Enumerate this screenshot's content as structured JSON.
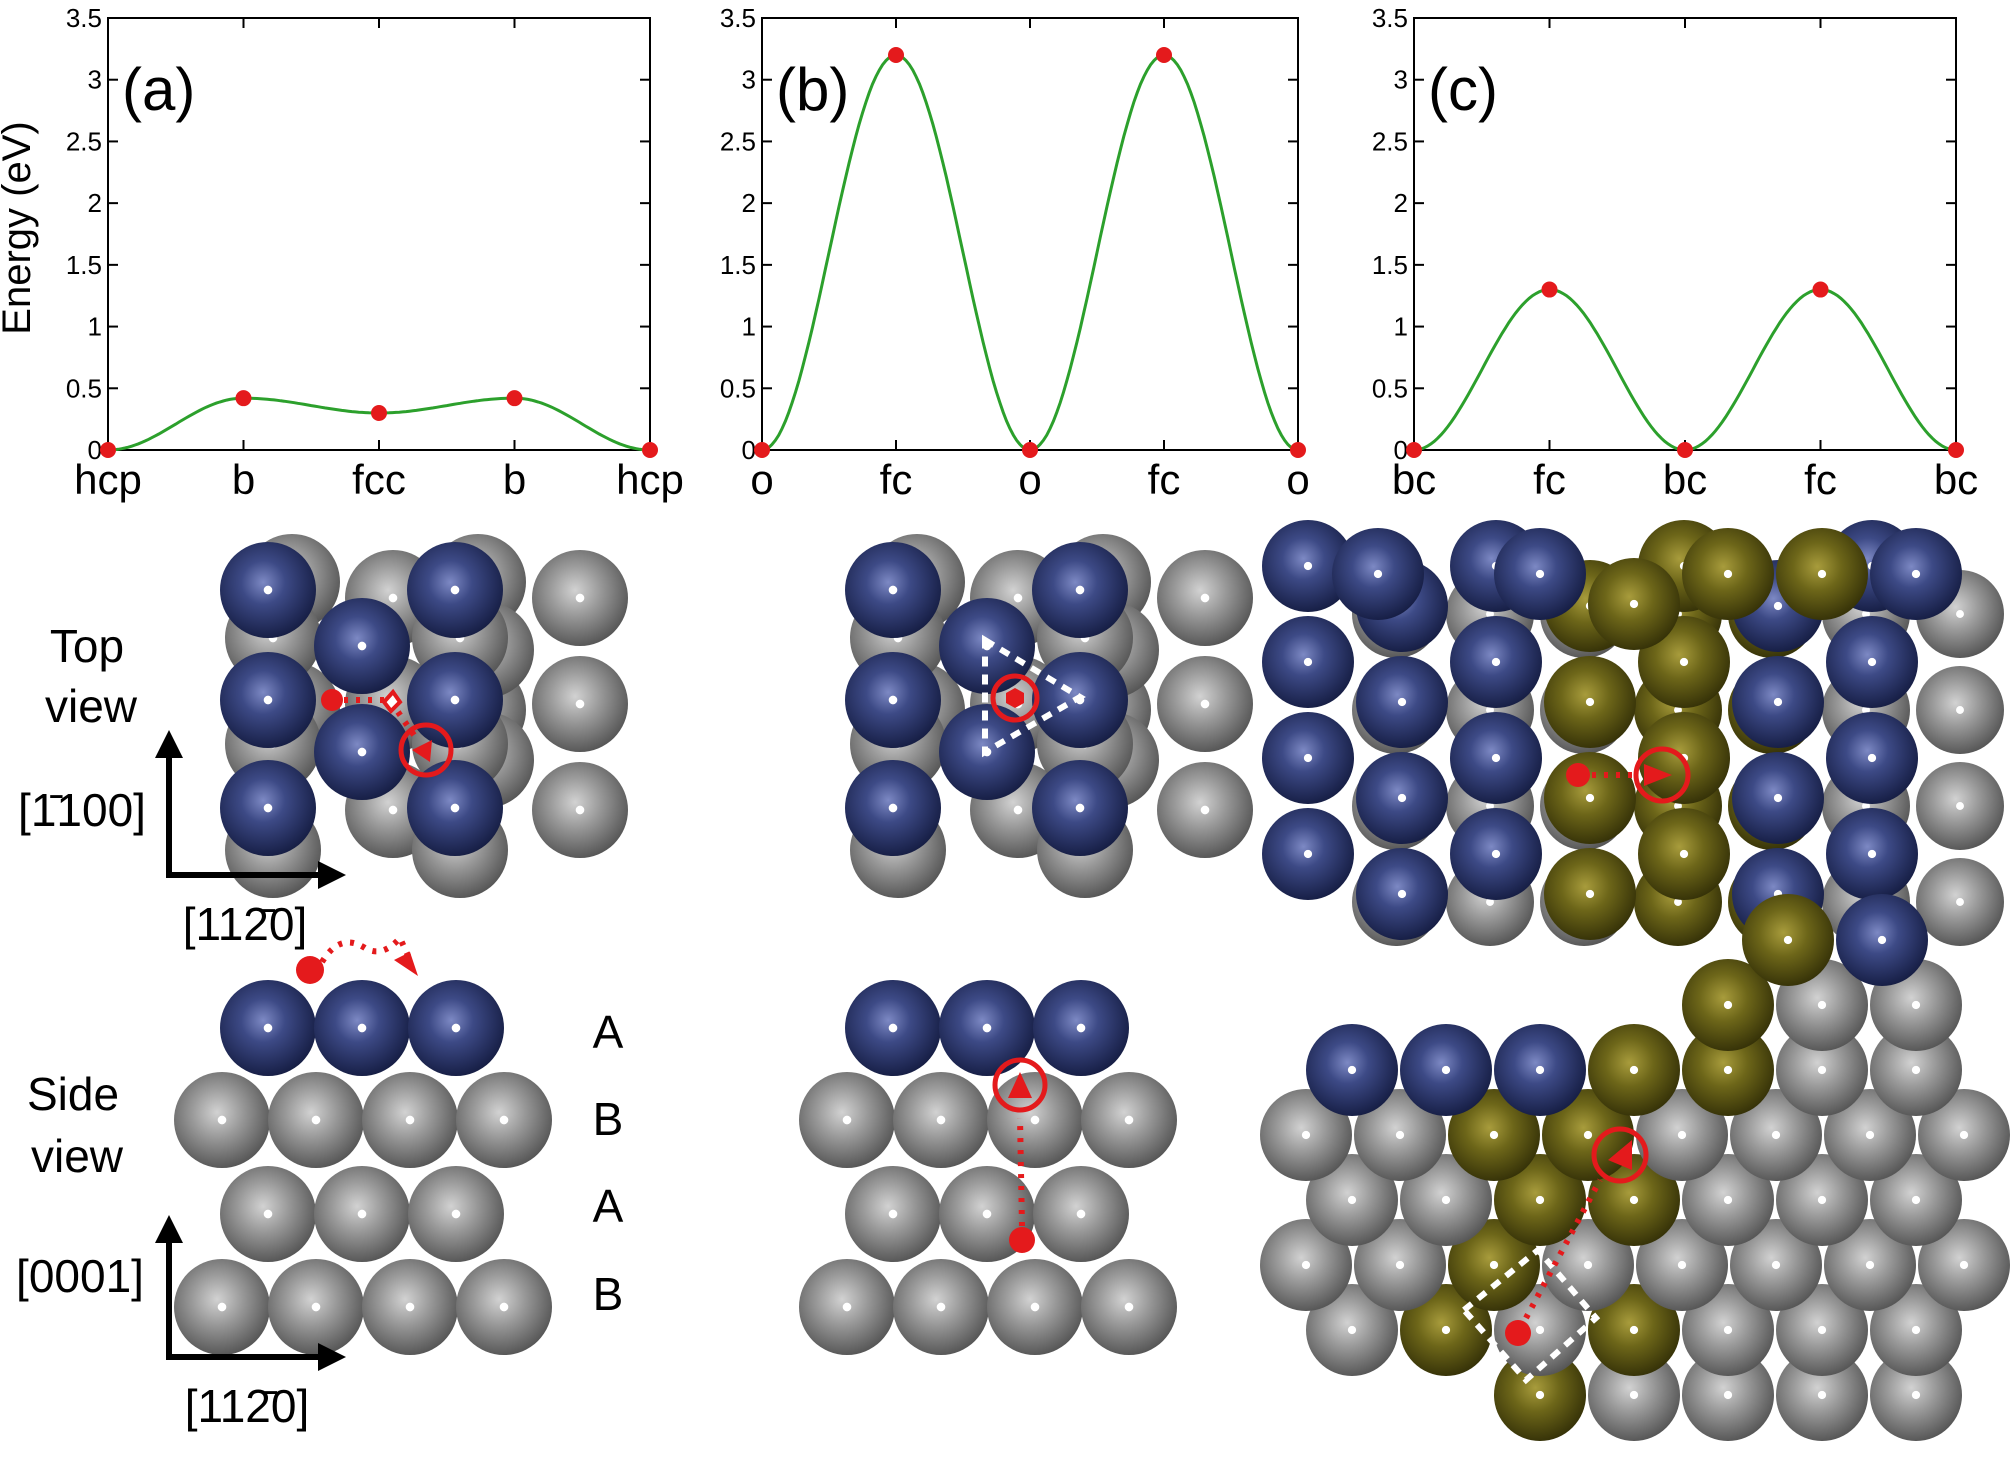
{
  "colors": {
    "curve": "#2ca02c",
    "marker": "#e41a1c",
    "blue_atom": "#2f3a70",
    "grey_atom": "#8a8a8a",
    "olive_atom": "#6b6418",
    "path": "#e41a1c",
    "guide_dots": "#ffffff"
  },
  "figure": {
    "ylabel": "Energy (eV)",
    "view_labels": {
      "top": [
        "Top",
        "view"
      ],
      "side": [
        "Side",
        "view"
      ]
    },
    "direction_labels": {
      "top_vertical": "[1̄100]",
      "top_horizontal": "[112̄0]",
      "side_vertical": "[0001]",
      "side_horizontal": "[112̄0]"
    },
    "layer_labels": [
      "A",
      "B",
      "A",
      "B"
    ]
  },
  "chart_data": [
    {
      "type": "line",
      "panel_label": "(a)",
      "categories": [
        "hcp",
        "b",
        "fcc",
        "b",
        "hcp"
      ],
      "values": [
        0,
        0.42,
        0.3,
        0.42,
        0
      ],
      "ylim": [
        0,
        3.5
      ],
      "yticks": [
        "0",
        "0.5",
        "1",
        "1.5",
        "2",
        "2.5",
        "3",
        "3.5"
      ],
      "ylabel": "Energy (eV)"
    },
    {
      "type": "line",
      "panel_label": "(b)",
      "categories": [
        "o",
        "fc",
        "o",
        "fc",
        "o"
      ],
      "values": [
        0,
        3.2,
        0,
        3.2,
        0
      ],
      "ylim": [
        0,
        3.5
      ],
      "yticks": [
        "0",
        "0.5",
        "1",
        "1.5",
        "2",
        "2.5",
        "3",
        "3.5"
      ]
    },
    {
      "type": "line",
      "panel_label": "(c)",
      "categories": [
        "bc",
        "fc",
        "bc",
        "fc",
        "bc"
      ],
      "values": [
        0,
        1.3,
        0,
        1.3,
        0
      ],
      "ylim": [
        0,
        3.5
      ],
      "yticks": [
        "0",
        "0.5",
        "1",
        "1.5",
        "2",
        "2.5",
        "3",
        "3.5"
      ]
    }
  ]
}
